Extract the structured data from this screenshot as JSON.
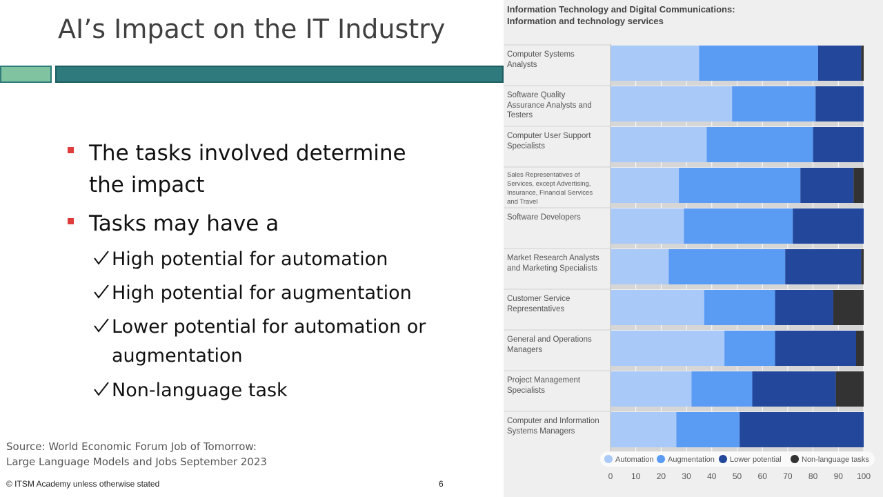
{
  "slide": {
    "title": "AI’s Impact on the IT Industry",
    "bullets": [
      "The tasks involved determine the impact",
      "Tasks may have a"
    ],
    "sub_bullets": [
      "High potential for automation",
      "High potential for augmentation",
      "Lower potential for automation or augmentation",
      "Non-language task"
    ],
    "source": [
      "Source: World Economic Forum Job of Tomorrow:",
      "Large Language Models and Jobs September 2023"
    ],
    "footer": "© ITSM Academy unless otherwise stated",
    "page_number": 6
  },
  "chart_data": {
    "type": "stacked-bar-horizontal",
    "title": "Information Technology and Digital Communications:",
    "subtitle": "Information and technology services",
    "categories": [
      "Computer Systems Analysts",
      "Software Quality Assurance Analysts and Testers",
      "Computer User Support Specialists",
      "Sales Representatives of Services, except Advertising, Insurance, Financial Services and Travel",
      "Software Developers",
      "Market Research Analysts and Marketing Specialists",
      "Customer Service Representatives",
      "General and Operations Managers",
      "Project Management Specialists",
      "Computer and Information Systems Managers"
    ],
    "series": [
      {
        "name": "Automation",
        "color": "#a9c9f9",
        "values": [
          35,
          48,
          38,
          27,
          29,
          23,
          37,
          45,
          32,
          26
        ]
      },
      {
        "name": "Augmentation",
        "color": "#5a9bf4",
        "values": [
          47,
          33,
          42,
          48,
          43,
          46,
          28,
          20,
          24,
          25
        ]
      },
      {
        "name": "Lower potential",
        "color": "#22479b",
        "values": [
          17,
          19,
          20,
          21,
          28,
          30,
          23,
          32,
          33,
          49
        ]
      },
      {
        "name": "Non-language tasks",
        "color": "#333333",
        "values": [
          1,
          0,
          0,
          4,
          0,
          1,
          12,
          3,
          11,
          0
        ]
      }
    ],
    "xlim": [
      0,
      100
    ],
    "xticks": [
      0,
      10,
      20,
      30,
      40,
      50,
      60,
      70,
      80,
      90,
      100
    ]
  }
}
